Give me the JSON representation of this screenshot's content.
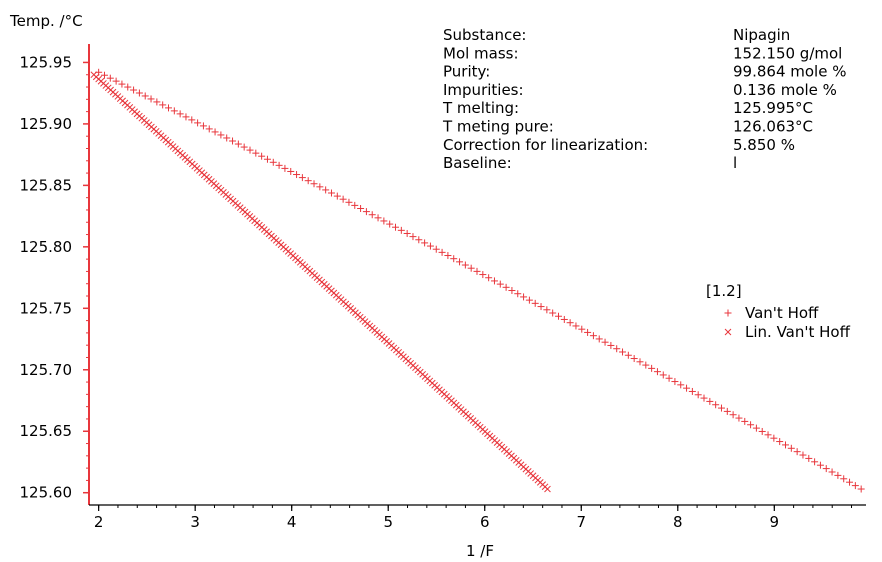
{
  "chart_data": {
    "type": "scatter",
    "ylabel": "Temp. /°C",
    "xlabel": "1 /F",
    "xlim": [
      1.9,
      9.95
    ],
    "ylim": [
      125.59,
      125.965
    ],
    "x_ticks": [
      2,
      3,
      4,
      5,
      6,
      7,
      8,
      9
    ],
    "y_ticks": [
      125.6,
      125.65,
      125.7,
      125.75,
      125.8,
      125.85,
      125.9,
      125.95
    ],
    "grid": false,
    "legend_title": "[1.2]",
    "legend_position": "right",
    "series": [
      {
        "name": "Van't Hoff",
        "marker": "+",
        "color": "#e8363c",
        "x_range": [
          2.0,
          9.9
        ],
        "y_range": [
          125.942,
          125.603
        ],
        "curvature": 0.025,
        "n_points": 132
      },
      {
        "name": "Lin. Van't Hoff",
        "marker": "x",
        "color": "#e8363c",
        "x_range": [
          1.95,
          6.65
        ],
        "y_range": [
          125.94,
          125.603
        ],
        "curvature": 0.003,
        "n_points": 190
      }
    ]
  },
  "info": {
    "rows": [
      {
        "label": "Substance:",
        "value": "Nipagin"
      },
      {
        "label": "Mol mass:",
        "value": "152.150 g/mol"
      },
      {
        "label": "Purity:",
        "value": "99.864 mole %"
      },
      {
        "label": "Impurities:",
        "value": "0.136 mole %"
      },
      {
        "label": "T melting:",
        "value": "125.995°C"
      },
      {
        "label": "T meting pure:",
        "value": "126.063°C"
      },
      {
        "label": "Correction for linearization:",
        "value": "5.850 %"
      },
      {
        "label": "Baseline:",
        "value": "l"
      }
    ]
  },
  "colors": {
    "axis_y": "#e8363c",
    "axis_x": "#000000",
    "series": "#e8363c"
  }
}
